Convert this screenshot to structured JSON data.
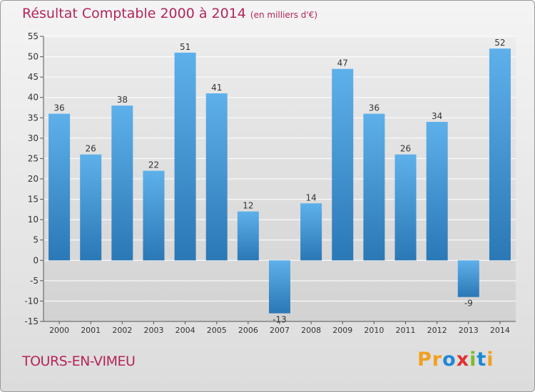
{
  "header": {
    "title": "Résultat Comptable 2000 à 2014",
    "subtitle": "(en milliers d'€)"
  },
  "footer": {
    "city": "TOURS-EN-VIMEU",
    "logo_letters": [
      "P",
      "r",
      "o",
      "x",
      "i",
      "t",
      "i"
    ]
  },
  "colors": {
    "title": "#b2255a",
    "bar_light": "#5eb0ea",
    "bar_dark": "#2a78b6",
    "grid": "#ffffff",
    "logo": [
      "#f0a020",
      "#f0a020",
      "#1e88d4",
      "#e03030",
      "#7dbb2c",
      "#1e88d4",
      "#f0a020"
    ]
  },
  "chart_data": {
    "type": "bar",
    "title": "Résultat Comptable 2000 à 2014",
    "subtitle": "(en milliers d'€)",
    "xlabel": "",
    "ylabel": "",
    "categories": [
      "2000",
      "2001",
      "2002",
      "2003",
      "2004",
      "2005",
      "2006",
      "2007",
      "2008",
      "2009",
      "2010",
      "2011",
      "2012",
      "2013",
      "2014"
    ],
    "values": [
      36,
      26,
      38,
      22,
      51,
      41,
      12,
      -13,
      14,
      47,
      36,
      26,
      34,
      -9,
      52
    ],
    "ylim": [
      -15,
      55
    ],
    "yticks": [
      -15,
      -10,
      -5,
      0,
      5,
      10,
      15,
      20,
      25,
      30,
      35,
      40,
      45,
      50,
      55
    ],
    "grid": true,
    "legend": "none"
  }
}
